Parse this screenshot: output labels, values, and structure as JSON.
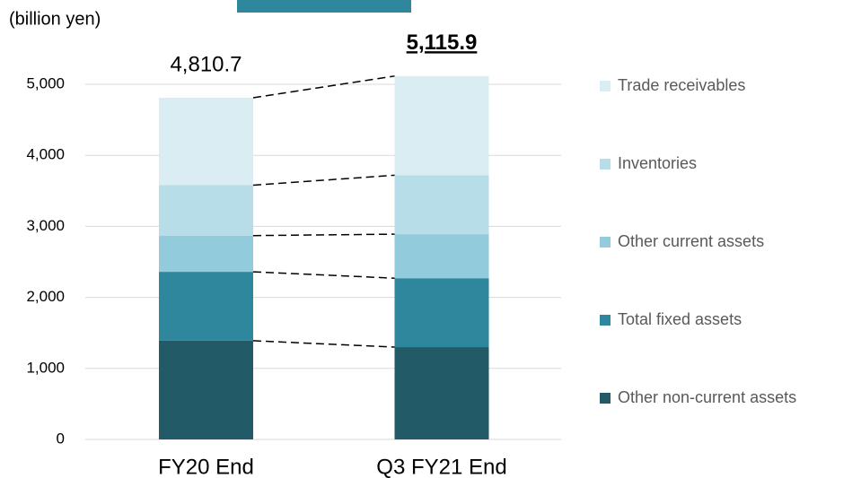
{
  "chart_data": {
    "type": "stacked_bar",
    "y_label": "(billion yen)",
    "categories": [
      "FY20 End",
      "Q3 FY21 End"
    ],
    "series": [
      {
        "name": "Other non-current assets",
        "color": "#235a68",
        "values": [
          1390,
          1300
        ]
      },
      {
        "name": "Total fixed assets",
        "color": "#2e879c",
        "values": [
          970,
          970
        ]
      },
      {
        "name": "Other current assets",
        "color": "#92cbdb",
        "values": [
          510,
          620
        ]
      },
      {
        "name": "Inventories",
        "color": "#b7dde8",
        "values": [
          710,
          830
        ]
      },
      {
        "name": "Trade receivables",
        "color": "#daedf3",
        "values": [
          1230.7,
          1395.9
        ]
      }
    ],
    "totals": {
      "values": [
        4810.7,
        5115.9
      ],
      "value_labels": [
        "4,810.7",
        "5,115.9"
      ]
    },
    "ylim": [
      0,
      5000
    ],
    "yticks": [
      0,
      {
        "value": 1000,
        "label": "1,000"
      },
      {
        "value": 2000,
        "label": "2,000"
      },
      {
        "value": 3000,
        "label": "3,000"
      },
      {
        "value": 4000,
        "label": "4,000"
      },
      {
        "value": 5000,
        "label": "5,000"
      }
    ],
    "grid": true,
    "legend": "right"
  }
}
